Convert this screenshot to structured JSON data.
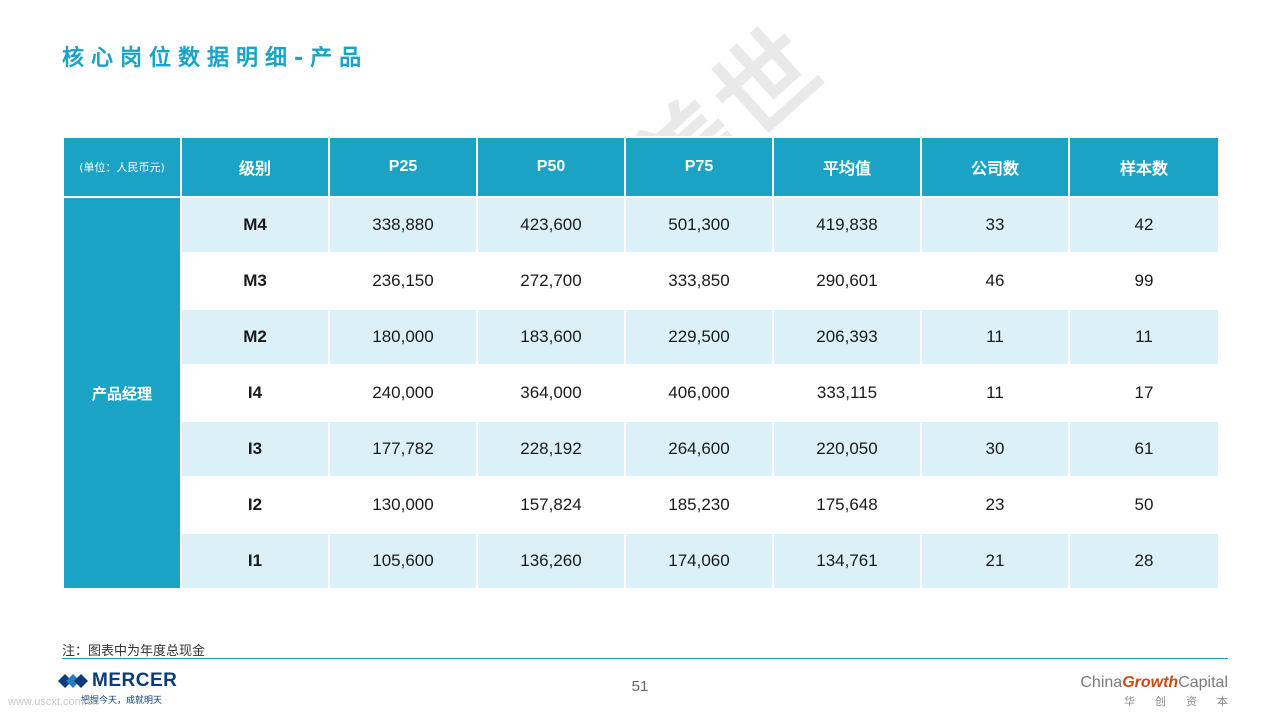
{
  "title": "核心岗位数据明细-产品",
  "watermark": "华创资本&美世",
  "table": {
    "headers": [
      "(单位：人民币元)",
      "级别",
      "P25",
      "P50",
      "P75",
      "平均值",
      "公司数",
      "样本数"
    ],
    "group_label": "产品经理",
    "rows": [
      {
        "level": "M4",
        "p25": "338,880",
        "p50": "423,600",
        "p75": "501,300",
        "avg": "419,838",
        "companies": "33",
        "samples": "42"
      },
      {
        "level": "M3",
        "p25": "236,150",
        "p50": "272,700",
        "p75": "333,850",
        "avg": "290,601",
        "companies": "46",
        "samples": "99"
      },
      {
        "level": "M2",
        "p25": "180,000",
        "p50": "183,600",
        "p75": "229,500",
        "avg": "206,393",
        "companies": "11",
        "samples": "11"
      },
      {
        "level": "I4",
        "p25": "240,000",
        "p50": "364,000",
        "p75": "406,000",
        "avg": "333,115",
        "companies": "11",
        "samples": "17"
      },
      {
        "level": "I3",
        "p25": "177,782",
        "p50": "228,192",
        "p75": "264,600",
        "avg": "220,050",
        "companies": "30",
        "samples": "61"
      },
      {
        "level": "I2",
        "p25": "130,000",
        "p50": "157,824",
        "p75": "185,230",
        "avg": "175,648",
        "companies": "23",
        "samples": "50"
      },
      {
        "level": "I1",
        "p25": "105,600",
        "p50": "136,260",
        "p75": "174,060",
        "avg": "134,761",
        "companies": "21",
        "samples": "28"
      }
    ]
  },
  "note": "注：图表中为年度总现金",
  "footer": {
    "mercer_name": "MERCER",
    "mercer_slogan": "把握今天，成就明天",
    "url": "www.uscxt.com.cn",
    "page_number": "51",
    "cgc_prefix": "China",
    "cgc_growth": "Growth",
    "cgc_suffix": "Capital",
    "cgc_chinese": "华创资本"
  },
  "colors": {
    "accent": "#1aa3c4",
    "row_tint": "#dcf1f7",
    "mercer_blue": "#0b3b7a",
    "growth_orange": "#c84a14"
  }
}
